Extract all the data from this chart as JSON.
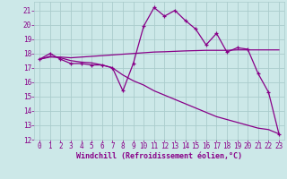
{
  "background_color": "#cce8e8",
  "grid_color": "#aacccc",
  "line_color": "#880088",
  "xlim": [
    -0.5,
    23.5
  ],
  "ylim": [
    12,
    21.6
  ],
  "yticks": [
    12,
    13,
    14,
    15,
    16,
    17,
    18,
    19,
    20,
    21
  ],
  "xticks": [
    0,
    1,
    2,
    3,
    4,
    5,
    6,
    7,
    8,
    9,
    10,
    11,
    12,
    13,
    14,
    15,
    16,
    17,
    18,
    19,
    20,
    21,
    22,
    23
  ],
  "xlabel": "Windchill (Refroidissement éolien,°C)",
  "series": [
    {
      "x": [
        0,
        1,
        2,
        3,
        4,
        5,
        6,
        7,
        8,
        9,
        10,
        11,
        12,
        13,
        14,
        15,
        16,
        17,
        18,
        19,
        20,
        21,
        22,
        23
      ],
      "y": [
        17.6,
        18.0,
        17.6,
        17.3,
        17.3,
        17.2,
        17.2,
        17.0,
        15.4,
        17.3,
        19.9,
        21.2,
        20.6,
        21.0,
        20.3,
        19.7,
        18.6,
        19.4,
        18.1,
        18.4,
        18.3,
        16.6,
        15.3,
        12.4
      ],
      "marker": "+"
    },
    {
      "x": [
        0,
        1,
        2,
        3,
        4,
        5,
        6,
        7,
        8,
        9,
        10,
        11,
        12,
        13,
        14,
        15,
        16,
        17,
        18,
        19,
        20,
        21,
        22,
        23
      ],
      "y": [
        17.6,
        17.75,
        17.75,
        17.7,
        17.75,
        17.8,
        17.85,
        17.9,
        17.95,
        18.0,
        18.05,
        18.1,
        18.12,
        18.15,
        18.18,
        18.2,
        18.22,
        18.22,
        18.22,
        18.25,
        18.25,
        18.25,
        18.25,
        18.25
      ],
      "marker": null
    },
    {
      "x": [
        0,
        1,
        2,
        3,
        4,
        5,
        6,
        7,
        8,
        9,
        10,
        11,
        12,
        13,
        14,
        15,
        16,
        17,
        18,
        19,
        20,
        21,
        22,
        23
      ],
      "y": [
        17.6,
        17.8,
        17.7,
        17.5,
        17.4,
        17.35,
        17.2,
        17.0,
        16.5,
        16.1,
        15.8,
        15.4,
        15.1,
        14.8,
        14.5,
        14.2,
        13.9,
        13.6,
        13.4,
        13.2,
        13.0,
        12.8,
        12.7,
        12.4
      ],
      "marker": null
    }
  ]
}
